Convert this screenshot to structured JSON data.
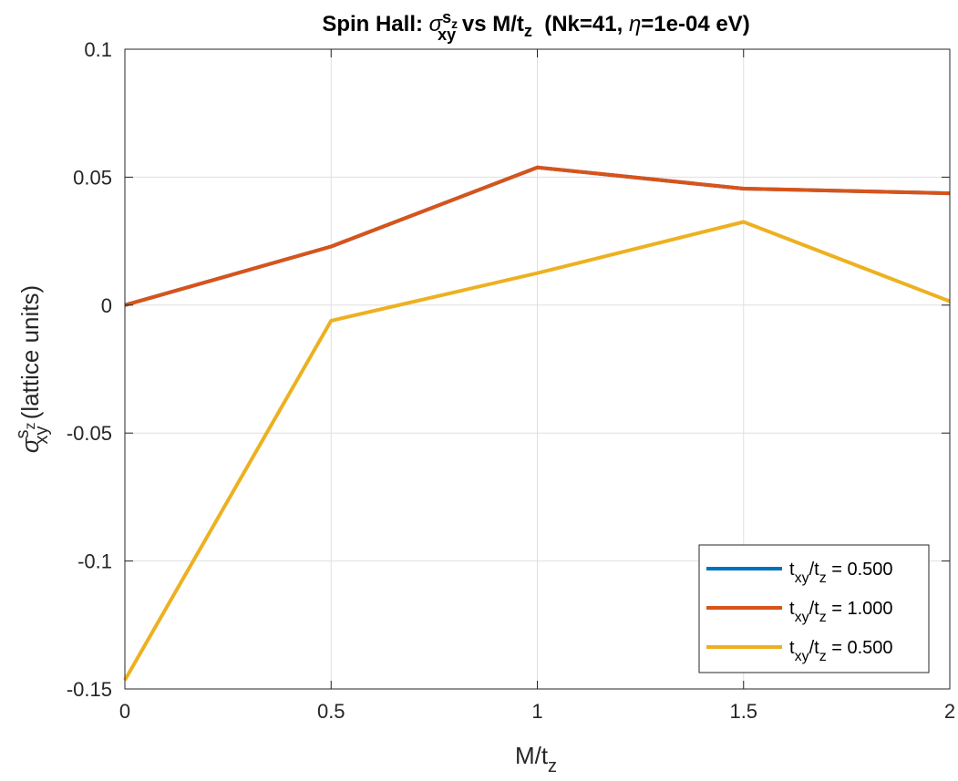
{
  "chart_data": {
    "type": "line",
    "title": {
      "lead": "Spin Hall: ",
      "sym": "σ",
      "sup": "s",
      "supsub": "z",
      "sub": "xy",
      "mid": " vs M/t",
      "midsub": "z",
      "tail_open": "  (Nk=41, ",
      "eta": "η",
      "tail_close": "=1e-04 eV)"
    },
    "xlabel": {
      "base": "M/t",
      "sub": "z"
    },
    "ylabel": {
      "sym": "σ",
      "sup": "s",
      "supsub": "z",
      "sub": "xy",
      "tail": " (lattice units)"
    },
    "xlim": [
      0,
      2
    ],
    "ylim": [
      -0.15,
      0.1
    ],
    "xticks": [
      0,
      0.5,
      1,
      1.5,
      2
    ],
    "xtick_labels": [
      "0",
      "0.5",
      "1",
      "1.5",
      "2"
    ],
    "yticks": [
      -0.15,
      -0.1,
      -0.05,
      0,
      0.05,
      0.1
    ],
    "ytick_labels": [
      "-0.15",
      "-0.1",
      "-0.05",
      "0",
      "0.05",
      "0.1"
    ],
    "grid": true,
    "legend_position": "bottom-right",
    "x": [
      0,
      0.5,
      1,
      1.5,
      2
    ],
    "series": [
      {
        "name": "t_xy/t_z = 0.500",
        "label": {
          "base": "t",
          "sub1": "xy",
          "mid": "/t",
          "sub2": "z",
          "tail": " = 0.500"
        },
        "color": "#0072BD",
        "values": [
          0.0,
          0.0229,
          0.0538,
          0.0455,
          0.0437
        ]
      },
      {
        "name": "t_xy/t_z = 1.000",
        "label": {
          "base": "t",
          "sub1": "xy",
          "mid": "/t",
          "sub2": "z",
          "tail": " = 1.000"
        },
        "color": "#D95319",
        "values": [
          0.0,
          0.0229,
          0.0538,
          0.0455,
          0.0437
        ]
      },
      {
        "name": "t_xy/t_z = 0.500",
        "label": {
          "base": "t",
          "sub1": "xy",
          "mid": "/t",
          "sub2": "z",
          "tail": " = 0.500"
        },
        "color": "#EDB120",
        "values": [
          -0.1465,
          -0.0061,
          0.0125,
          0.0325,
          0.0015
        ]
      }
    ]
  }
}
